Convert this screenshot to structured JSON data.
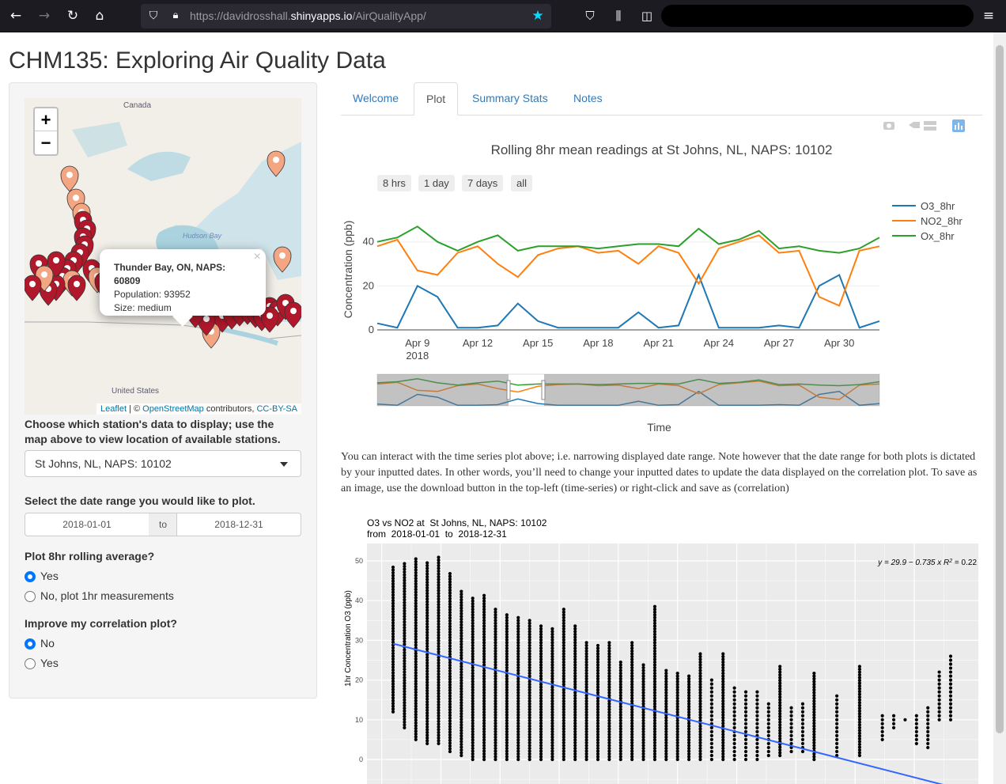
{
  "browser": {
    "url_prefix": "https://davidrosshall.",
    "url_domain": "shinyapps.io",
    "url_path": "/AirQualityApp/"
  },
  "app": {
    "title": "CHM135: Exploring Air Quality Data"
  },
  "map": {
    "country_label": "Canada",
    "bay_label": "Hudson Bay",
    "us_label": "United States",
    "zoom_in": "+",
    "zoom_out": "−",
    "popup": {
      "name": "Thunder Bay, ON, NAPS: 60809",
      "population": "Population: 93952",
      "size": "Size: medium",
      "close": "×"
    },
    "attribution": {
      "leaflet": "Leaflet",
      "sep": " | © ",
      "osm": "OpenStreetMap",
      "contrib": " contributors, ",
      "license": "CC-BY-SA"
    },
    "marker_color_low": "#f4a582",
    "marker_color_high": "#b2182b"
  },
  "sidebar": {
    "station_label_line1": "Choose which station's data to display; use the",
    "station_label_line2": "map above to view location of available stations.",
    "station_selected": "St Johns, NL, NAPS: 10102",
    "date_label": "Select the date range you would like to plot.",
    "date_start": "2018-01-01",
    "date_sep": "to",
    "date_end": "2018-12-31",
    "rolling_label": "Plot 8hr rolling average?",
    "rolling_options": [
      "Yes",
      "No, plot 1hr measurements"
    ],
    "rolling_selected": 0,
    "improve_label": "Improve my correlation plot?",
    "improve_options": [
      "No",
      "Yes"
    ],
    "improve_selected": 0
  },
  "tabs": [
    {
      "label": "Welcome",
      "active": false
    },
    {
      "label": "Plot",
      "active": true
    },
    {
      "label": "Summary Stats",
      "active": false
    },
    {
      "label": "Notes",
      "active": false
    }
  ],
  "timeseries": {
    "title": "Rolling 8hr mean readings at  St Johns, NL, NAPS: 10102",
    "range_buttons": [
      "8 hrs",
      "1 day",
      "7 days",
      "all"
    ],
    "ylabel": "Concentration (ppb)",
    "xlabel": "Time"
  },
  "paragraph": "You can interact with the time series plot above; i.e. narrowing displayed date range. Note however that the date range for both plots is dictated by your inputted dates. In other words, you’ll need to change your inputted dates to update the data displayed on the correlation plot. To save as an image, use the download button in the top-left (time-series) or right-click and save as (correlation)",
  "correlation": {
    "title_line1": "O3 vs NO2 at  St Johns, NL, NAPS: 10102",
    "title_line2": "from  2018-01-01  to  2018-12-31",
    "equation": "y = 29.9 − 0.735 x   R",
    "r2": " = 0.22",
    "ylabel": "1hr Concentration O3 (ppb)"
  },
  "chart_data": [
    {
      "type": "line",
      "title": "Rolling 8hr mean readings at  St Johns, NL, NAPS: 10102",
      "xlabel": "Time",
      "ylabel": "Concentration (ppb)",
      "ylim": [
        0,
        55
      ],
      "x_tick_labels": [
        "Apr 9\n2018",
        "Apr 12",
        "Apr 15",
        "Apr 18",
        "Apr 21",
        "Apr 24",
        "Apr 27",
        "Apr 30"
      ],
      "y_ticks": [
        0,
        20,
        40
      ],
      "legend": "top-right",
      "x": [
        "2018-04-07",
        "2018-04-08",
        "2018-04-09",
        "2018-04-10",
        "2018-04-11",
        "2018-04-12",
        "2018-04-13",
        "2018-04-14",
        "2018-04-15",
        "2018-04-16",
        "2018-04-17",
        "2018-04-18",
        "2018-04-19",
        "2018-04-20",
        "2018-04-21",
        "2018-04-22",
        "2018-04-23",
        "2018-04-24",
        "2018-04-25",
        "2018-04-26",
        "2018-04-27",
        "2018-04-28",
        "2018-04-29",
        "2018-04-30",
        "2018-05-01",
        "2018-05-02"
      ],
      "series": [
        {
          "name": "O3_8hr",
          "color": "#1f77b4",
          "values": [
            3,
            1,
            20,
            15,
            1,
            1,
            2,
            12,
            4,
            1,
            1,
            1,
            1,
            8,
            1,
            2,
            25,
            1,
            1,
            1,
            2,
            1,
            20,
            25,
            1,
            4
          ]
        },
        {
          "name": "NO2_8hr",
          "color": "#ff7f0e",
          "values": [
            38,
            41,
            27,
            25,
            35,
            38,
            30,
            24,
            34,
            37,
            38,
            35,
            36,
            30,
            38,
            35,
            21,
            37,
            40,
            43,
            35,
            36,
            15,
            11,
            36,
            38
          ]
        },
        {
          "name": "Ox_8hr",
          "color": "#2ca02c",
          "values": [
            40,
            42,
            47,
            40,
            36,
            40,
            43,
            36,
            38,
            38,
            38,
            37,
            38,
            39,
            39,
            38,
            46,
            39,
            41,
            45,
            37,
            38,
            36,
            35,
            37,
            42
          ]
        }
      ]
    },
    {
      "type": "scatter",
      "title": "O3 vs NO2 at  St Johns, NL, NAPS: 10102",
      "subtitle": "from  2018-01-01  to  2018-12-31",
      "ylabel": "1hr Concentration O3 (ppb)",
      "ylim": [
        -5,
        55
      ],
      "y_ticks": [
        0,
        10,
        20,
        30,
        40,
        50
      ],
      "fit": {
        "intercept": 29.9,
        "slope": -0.735,
        "r2": 0.22
      },
      "points_x": [
        1,
        2,
        3,
        4,
        5,
        6,
        7,
        8,
        9,
        10,
        11,
        12,
        13,
        14,
        15,
        16,
        17,
        18,
        19,
        20,
        21,
        22,
        23,
        24,
        25,
        26,
        27,
        28,
        29,
        30,
        31,
        32,
        33,
        34,
        35,
        36,
        37,
        38,
        40,
        42,
        44,
        45,
        46,
        47,
        48,
        49,
        50
      ],
      "points_ymax": [
        49,
        50,
        51,
        50,
        51,
        47,
        43,
        41,
        42,
        38,
        37,
        36,
        35,
        34,
        33,
        38,
        34,
        30,
        29,
        30,
        25,
        30,
        24,
        39,
        23,
        22,
        21,
        27,
        20,
        27,
        18,
        17,
        17,
        14,
        24,
        13,
        14,
        22,
        16,
        24,
        11,
        11,
        10,
        11,
        13,
        22,
        26
      ],
      "points_ymin": [
        12,
        8,
        5,
        4,
        4,
        2,
        1,
        0,
        0,
        0,
        0,
        0,
        0,
        0,
        0,
        0,
        0,
        0,
        0,
        0,
        0,
        0,
        0,
        0,
        0,
        0,
        0,
        0,
        0,
        0,
        0,
        0,
        0,
        1,
        1,
        2,
        2,
        0,
        1,
        1,
        5,
        8,
        10,
        4,
        3,
        10,
        10
      ]
    }
  ]
}
